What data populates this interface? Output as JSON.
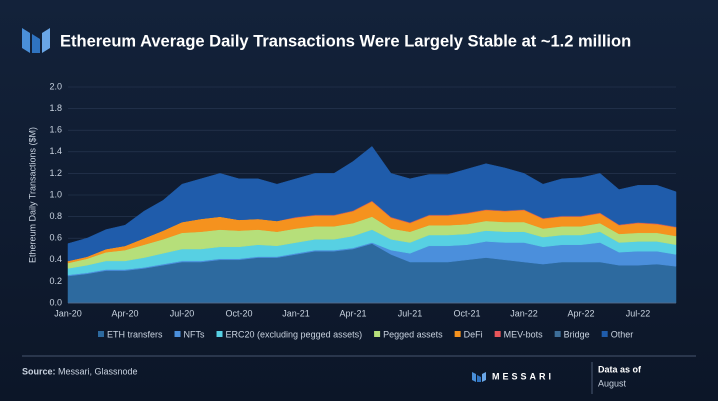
{
  "chart_data": {
    "type": "stacked-area",
    "title": "Ethereum Average Daily Transactions Were Largely Stable at ~1.2 million",
    "y_label": "Ethereum Daily Transactions ($M)",
    "source_label": "Source:",
    "source": "Messari, Glassnode",
    "brand": "MESSARI",
    "date_note": "Data as of",
    "date_value": "August",
    "categories": [
      "Jan-20",
      null,
      null,
      "Apr-20",
      null,
      null,
      "Jul-20",
      null,
      null,
      "Oct-20",
      null,
      null,
      "Jan-21",
      null,
      null,
      "Apr-21",
      null,
      null,
      "Jul-21",
      null,
      null,
      "Oct-21",
      null,
      null,
      "Jan-22",
      null,
      null,
      "Apr-22",
      null,
      null,
      "Jul-22",
      null,
      null
    ],
    "ylim": [
      0,
      2
    ],
    "yticks": [
      {
        "value": 0,
        "label": "0.0"
      },
      0.2,
      0.4,
      0.6,
      0.8,
      {
        "value": 1,
        "label": "1.0"
      },
      1.2,
      1.4,
      1.6,
      1.8,
      {
        "value": 2,
        "label": "2.0"
      }
    ],
    "series": [
      {
        "name": "ETH transfers",
        "color": "#2d6a9f",
        "values": [
          0.25,
          0.27,
          0.3,
          0.3,
          0.32,
          0.35,
          0.38,
          0.38,
          0.4,
          0.4,
          0.42,
          0.42,
          0.45,
          0.48,
          0.48,
          0.5,
          0.55,
          0.45,
          0.38,
          0.38,
          0.38,
          0.4,
          0.42,
          0.4,
          0.38,
          0.36,
          0.38,
          0.38,
          0.38,
          0.35,
          0.35,
          0.36,
          0.34
        ]
      },
      {
        "name": "NFTs",
        "color": "#4b8fdc",
        "values": [
          0.01,
          0.01,
          0.01,
          0.01,
          0.01,
          0.01,
          0.01,
          0.01,
          0.01,
          0.01,
          0.01,
          0.01,
          0.01,
          0.01,
          0.01,
          0.01,
          0.01,
          0.04,
          0.08,
          0.15,
          0.15,
          0.14,
          0.15,
          0.16,
          0.18,
          0.16,
          0.16,
          0.16,
          0.18,
          0.12,
          0.13,
          0.12,
          0.11
        ]
      },
      {
        "name": "ERC20 (excluding pegged assets)",
        "color": "#57d0e3",
        "values": [
          0.06,
          0.07,
          0.08,
          0.08,
          0.09,
          0.1,
          0.11,
          0.11,
          0.11,
          0.11,
          0.11,
          0.1,
          0.1,
          0.1,
          0.1,
          0.11,
          0.12,
          0.1,
          0.1,
          0.1,
          0.1,
          0.1,
          0.1,
          0.1,
          0.1,
          0.09,
          0.09,
          0.09,
          0.1,
          0.09,
          0.09,
          0.09,
          0.09
        ]
      },
      {
        "name": "Pegged assets",
        "color": "#b6df7a",
        "values": [
          0.05,
          0.06,
          0.08,
          0.1,
          0.12,
          0.13,
          0.15,
          0.16,
          0.16,
          0.15,
          0.14,
          0.13,
          0.13,
          0.12,
          0.12,
          0.12,
          0.12,
          0.1,
          0.1,
          0.09,
          0.09,
          0.09,
          0.09,
          0.09,
          0.09,
          0.08,
          0.08,
          0.08,
          0.08,
          0.08,
          0.08,
          0.08,
          0.08
        ]
      },
      {
        "name": "DeFi",
        "color": "#f5921e",
        "values": [
          0.02,
          0.02,
          0.03,
          0.04,
          0.06,
          0.08,
          0.1,
          0.12,
          0.12,
          0.1,
          0.1,
          0.1,
          0.1,
          0.1,
          0.1,
          0.11,
          0.14,
          0.1,
          0.08,
          0.09,
          0.09,
          0.1,
          0.1,
          0.1,
          0.11,
          0.09,
          0.09,
          0.09,
          0.09,
          0.08,
          0.09,
          0.08,
          0.08
        ]
      },
      {
        "name": "MEV-bots",
        "color": "#e8555a",
        "values": [
          0,
          0,
          0,
          0,
          0,
          0,
          0,
          0,
          0,
          0,
          0,
          0,
          0.005,
          0.005,
          0.005,
          0.005,
          0.005,
          0.005,
          0.005,
          0.005,
          0.005,
          0.005,
          0.005,
          0.005,
          0.005,
          0.005,
          0.005,
          0.005,
          0.005,
          0.005,
          0.005,
          0.005,
          0.005
        ]
      },
      {
        "name": "Bridge",
        "color": "#3d6e99",
        "values": [
          0,
          0,
          0,
          0,
          0,
          0,
          0,
          0,
          0,
          0,
          0,
          0,
          0.005,
          0.005,
          0.005,
          0.005,
          0.005,
          0.005,
          0.005,
          0.005,
          0.005,
          0.005,
          0.005,
          0.005,
          0.005,
          0.005,
          0.005,
          0.005,
          0.005,
          0.005,
          0.005,
          0.005,
          0.005
        ]
      },
      {
        "name": "Other",
        "color": "#1f5cab",
        "values": [
          0.16,
          0.17,
          0.18,
          0.19,
          0.25,
          0.28,
          0.35,
          0.37,
          0.4,
          0.38,
          0.37,
          0.34,
          0.35,
          0.38,
          0.38,
          0.45,
          0.5,
          0.4,
          0.4,
          0.37,
          0.37,
          0.4,
          0.42,
          0.39,
          0.33,
          0.31,
          0.34,
          0.35,
          0.36,
          0.32,
          0.34,
          0.35,
          0.32
        ]
      }
    ]
  }
}
